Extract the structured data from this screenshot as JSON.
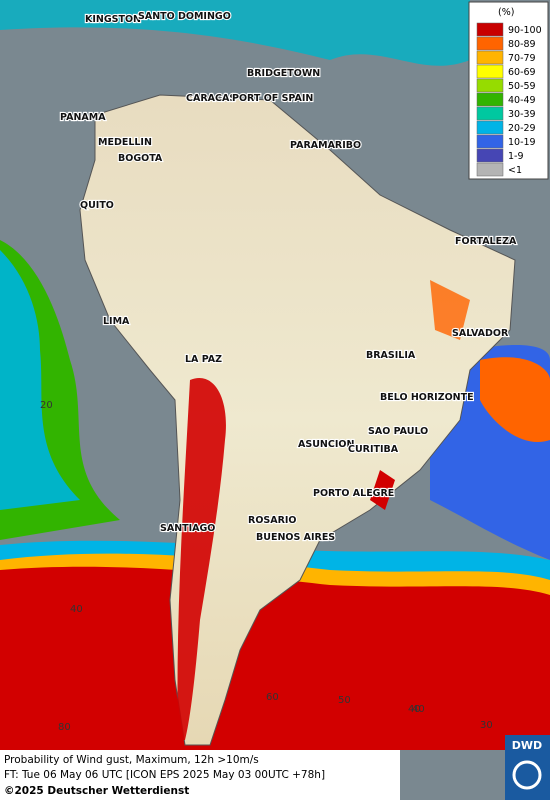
{
  "map": {
    "cities": [
      "KINGSTON",
      "SANTO DOMINGO",
      "BRIDGETOWN",
      "CARACAS",
      "PORT OF SPAIN",
      "PANAMA",
      "MEDELLIN",
      "BOGOTA",
      "PARAMARIBO",
      "QUITO",
      "FORTALEZA",
      "LIMA",
      "SALVADOR",
      "LA PAZ",
      "BRASILIA",
      "BELO HORIZONTE",
      "SAO PAULO",
      "ASUNCION",
      "CURITIBA",
      "PORTO ALEGRE",
      "ROSARIO",
      "BUENOS AIRES",
      "SANTIAGO"
    ],
    "grid_labels": [
      "20",
      "40",
      "40",
      "60",
      "50",
      "40",
      "30",
      "80"
    ]
  },
  "legend": {
    "title": "(%)",
    "items": [
      {
        "label": "90-100",
        "color": "#c80000"
      },
      {
        "label": "80-89",
        "color": "#ff6400"
      },
      {
        "label": "70-79",
        "color": "#ffb400"
      },
      {
        "label": "60-69",
        "color": "#ffff00"
      },
      {
        "label": "50-59",
        "color": "#96dc00"
      },
      {
        "label": "40-49",
        "color": "#32b400"
      },
      {
        "label": "30-39",
        "color": "#00c8a0"
      },
      {
        "label": "20-29",
        "color": "#00b4e6"
      },
      {
        "label": "10-19",
        "color": "#3264e6"
      },
      {
        "label": "1-9",
        "color": "#4646b4"
      },
      {
        "label": "<1",
        "color": "#b4b4b4"
      }
    ]
  },
  "footer": {
    "line1": "Probability of Wind gust, Maximum, 12h >10m/s",
    "line2": "FT: Tue 06 May 06 UTC [ICON EPS 2025 May 03 00UTC +78h]",
    "line3": "©2025 Deutscher Wetterdienst"
  },
  "logo": "DWD"
}
